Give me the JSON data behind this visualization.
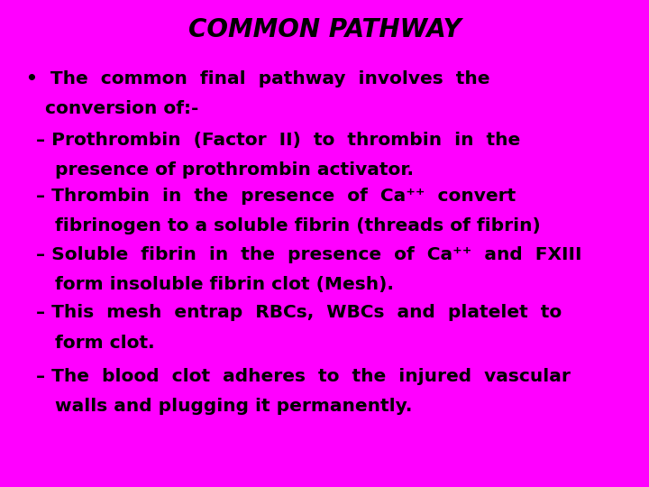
{
  "title": "COMMON PATHWAY",
  "background_color": "#FF00FF",
  "text_color": "#000000",
  "title_fontsize": 20,
  "body_fontsize": 14.5,
  "font_family": "DejaVu Sans Condensed",
  "bullet_line1": "•  The  common  final  pathway  involves  the",
  "bullet_line2": "   conversion of:-",
  "items": [
    [
      "– Prothrombin  (Factor  II)  to  thrombin  in  the",
      "   presence of prothrombin activator."
    ],
    [
      "– Thrombin  in  the  presence  of  Ca⁺⁺  convert",
      "   fibrinogen to a soluble fibrin (threads of fibrin)"
    ],
    [
      "– Soluble  fibrin  in  the  presence  of  Ca⁺⁺  and  FXIII",
      "   form insoluble fibrin clot (Mesh)."
    ],
    [
      "– This  mesh  entrap  RBCs,  WBCs  and  platelet  to",
      "   form clot."
    ],
    [
      "– The  blood  clot  adheres  to  the  injured  vascular",
      "   walls and plugging it permanently."
    ]
  ],
  "fig_width": 7.2,
  "fig_height": 5.4,
  "dpi": 100
}
